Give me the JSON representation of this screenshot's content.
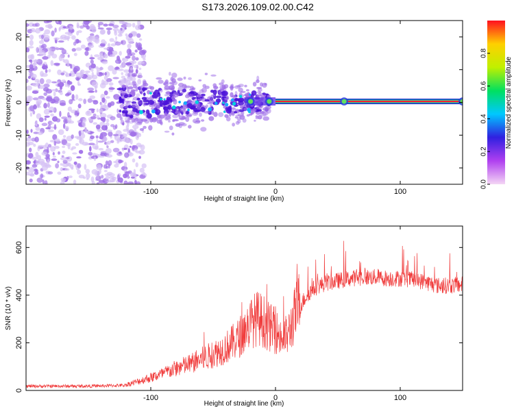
{
  "title": "S173.2026.109.02.00.C42",
  "colors": {
    "snr_line": "#f03c3c",
    "noise_scatter": "#a070e8",
    "noise_light": "#d6c2f5",
    "core": "#4a10d8",
    "band_outer": "#5a28e6",
    "band_inner": "#ff2030",
    "band_mid": "#24e0a0"
  },
  "chart_data": [
    {
      "type": "heatmap",
      "title": "",
      "xlabel": "Height of straight line (km)",
      "ylabel": "Frequency (Hz)",
      "xlim": [
        -200,
        150
      ],
      "ylim": [
        -25,
        25
      ],
      "xticks": [
        -100,
        0,
        100
      ],
      "yticks": [
        -20,
        -10,
        0,
        10,
        20
      ],
      "description_series": {
        "background_noise_region_x": [
          -200,
          -115
        ],
        "signal_cluster_region_x": [
          -125,
          -20
        ],
        "steady_carrier_start_x": 0,
        "carrier_frequency_hz": 0.3,
        "bright_spots_x": [
          -20,
          -5,
          55,
          150
        ]
      },
      "colorbar": {
        "label": "Normalized spectral amplitude",
        "range": [
          0,
          1
        ],
        "ticks": [
          0.0,
          0.2,
          0.4,
          0.6,
          0.8
        ],
        "stops": [
          "#f4d6f4",
          "#b040f0",
          "#3020e0",
          "#00c8ff",
          "#00e060",
          "#c0f000",
          "#ffd000",
          "#ff1020"
        ]
      }
    },
    {
      "type": "line",
      "title": "",
      "xlabel": "Height of straight line (km)",
      "ylabel": "SNR (10 * v/v)",
      "xlim": [
        -200,
        150
      ],
      "ylim": [
        0,
        690
      ],
      "xticks": [
        -100,
        0,
        100
      ],
      "yticks": [
        0,
        200,
        400,
        600
      ],
      "series": [
        {
          "name": "SNR",
          "x": [
            -200,
            -180,
            -160,
            -140,
            -120,
            -110,
            -100,
            -90,
            -80,
            -70,
            -60,
            -50,
            -40,
            -30,
            -25,
            -20,
            -15,
            -10,
            -5,
            0,
            5,
            10,
            15,
            20,
            25,
            30,
            35,
            40,
            50,
            60,
            70,
            80,
            90,
            100,
            110,
            120,
            130,
            140,
            150
          ],
          "values": [
            18,
            18,
            18,
            19,
            22,
            35,
            50,
            65,
            85,
            100,
            120,
            140,
            165,
            200,
            230,
            260,
            280,
            270,
            245,
            230,
            200,
            215,
            285,
            355,
            400,
            425,
            440,
            450,
            460,
            470,
            475,
            475,
            470,
            470,
            465,
            455,
            440,
            440,
            445
          ]
        }
      ]
    }
  ]
}
